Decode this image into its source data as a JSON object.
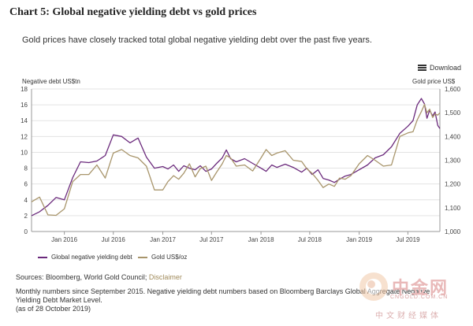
{
  "header": {
    "title": "Chart 5: Global negative yielding debt vs gold prices",
    "subtitle": "Gold prices have closely tracked total global negative yielding debt over the past five years."
  },
  "toolbar": {
    "download_label": "Download",
    "download_icon": "menu-icon"
  },
  "footer": {
    "sources_prefix": "Sources: Bloomberg, World Gold Council; ",
    "disclaimer_link": "Disclaimer",
    "note_line1": "Monthly numbers since September 2015. Negative yielding debt numbers based on Bloomberg Barclays Global Aggregate Negative",
    "note_line2": "Yielding Debt Market Level.",
    "note_line3": "(as of 28 October 2019)"
  },
  "watermark": {
    "text": "中金网",
    "url": "CNGOLD.COM.CN",
    "sub": "中文财经媒体"
  },
  "colors": {
    "debt": "#6b2a7c",
    "gold": "#a8956b",
    "grid": "#e3e3e3",
    "axis": "#999999"
  },
  "chart_data": {
    "type": "line",
    "title": "Chart 5: Global negative yielding debt vs gold prices",
    "y_left_label": "Negative debt US$tn",
    "y_right_label": "Gold price US$",
    "y_left_range": [
      0,
      18
    ],
    "y_left_ticks": [
      "0",
      "2",
      "4",
      "6",
      "8",
      "10",
      "12",
      "14",
      "16",
      "18"
    ],
    "y_right_range": [
      1000,
      1600
    ],
    "y_right_ticks": [
      "1,000",
      "1,100",
      "1,200",
      "1,300",
      "1,400",
      "1,500",
      "1,600"
    ],
    "x_range": [
      "2015-09-01",
      "2019-10-28"
    ],
    "x_ticks": [
      {
        "date": "2016-01-01",
        "label": "Jan 2016"
      },
      {
        "date": "2016-07-01",
        "label": "Jul 2016"
      },
      {
        "date": "2017-01-01",
        "label": "Jan 2017"
      },
      {
        "date": "2017-07-01",
        "label": "Jul 2017"
      },
      {
        "date": "2018-01-01",
        "label": "Jan 2018"
      },
      {
        "date": "2018-07-01",
        "label": "Jul 2018"
      },
      {
        "date": "2019-01-01",
        "label": "Jan 2019"
      },
      {
        "date": "2019-07-01",
        "label": "Jul 2019"
      }
    ],
    "grid": true,
    "legend_position": "bottom-left",
    "series": [
      {
        "name": "Global negative yielding debt",
        "axis": "left",
        "color": "#6b2a7c",
        "points": [
          [
            "2015-09-01",
            2.0
          ],
          [
            "2015-10-01",
            2.5
          ],
          [
            "2015-11-01",
            3.3
          ],
          [
            "2015-12-01",
            4.3
          ],
          [
            "2016-01-01",
            4.0
          ],
          [
            "2016-02-01",
            6.8
          ],
          [
            "2016-03-01",
            8.8
          ],
          [
            "2016-04-01",
            8.7
          ],
          [
            "2016-05-01",
            8.9
          ],
          [
            "2016-06-01",
            9.6
          ],
          [
            "2016-07-01",
            12.2
          ],
          [
            "2016-08-01",
            12.0
          ],
          [
            "2016-09-01",
            11.2
          ],
          [
            "2016-10-01",
            11.8
          ],
          [
            "2016-11-01",
            9.4
          ],
          [
            "2016-12-01",
            8.0
          ],
          [
            "2017-01-01",
            8.2
          ],
          [
            "2017-01-20",
            7.9
          ],
          [
            "2017-02-10",
            8.4
          ],
          [
            "2017-03-01",
            7.6
          ],
          [
            "2017-03-20",
            8.3
          ],
          [
            "2017-04-10",
            8.0
          ],
          [
            "2017-05-01",
            7.8
          ],
          [
            "2017-05-20",
            8.3
          ],
          [
            "2017-06-10",
            7.6
          ],
          [
            "2017-07-01",
            7.9
          ],
          [
            "2017-07-20",
            8.6
          ],
          [
            "2017-08-10",
            9.3
          ],
          [
            "2017-08-25",
            10.3
          ],
          [
            "2017-09-10",
            9.2
          ],
          [
            "2017-10-01",
            8.8
          ],
          [
            "2017-11-01",
            9.2
          ],
          [
            "2017-12-01",
            8.6
          ],
          [
            "2018-01-01",
            8.0
          ],
          [
            "2018-01-20",
            7.6
          ],
          [
            "2018-02-10",
            8.4
          ],
          [
            "2018-03-01",
            8.1
          ],
          [
            "2018-04-01",
            8.5
          ],
          [
            "2018-05-01",
            8.1
          ],
          [
            "2018-06-01",
            7.5
          ],
          [
            "2018-06-20",
            8.0
          ],
          [
            "2018-07-10",
            7.2
          ],
          [
            "2018-08-01",
            7.8
          ],
          [
            "2018-08-20",
            6.7
          ],
          [
            "2018-09-10",
            6.5
          ],
          [
            "2018-10-01",
            6.2
          ],
          [
            "2018-10-20",
            6.6
          ],
          [
            "2018-11-10",
            7.0
          ],
          [
            "2018-12-01",
            7.2
          ],
          [
            "2019-01-01",
            7.8
          ],
          [
            "2019-02-01",
            8.4
          ],
          [
            "2019-03-01",
            9.3
          ],
          [
            "2019-04-01",
            9.7
          ],
          [
            "2019-05-01",
            10.7
          ],
          [
            "2019-06-01",
            12.4
          ],
          [
            "2019-07-01",
            13.3
          ],
          [
            "2019-07-20",
            14.0
          ],
          [
            "2019-08-05",
            16.0
          ],
          [
            "2019-08-20",
            16.8
          ],
          [
            "2019-09-01",
            16.1
          ],
          [
            "2019-09-10",
            14.3
          ],
          [
            "2019-09-20",
            15.3
          ],
          [
            "2019-10-01",
            14.6
          ],
          [
            "2019-10-10",
            15.1
          ],
          [
            "2019-10-20",
            13.4
          ],
          [
            "2019-10-28",
            13.0
          ]
        ]
      },
      {
        "name": "Gold US$/oz",
        "axis": "right",
        "color": "#a8956b",
        "points": [
          [
            "2015-09-01",
            1125
          ],
          [
            "2015-10-01",
            1145
          ],
          [
            "2015-11-01",
            1070
          ],
          [
            "2015-12-01",
            1068
          ],
          [
            "2016-01-01",
            1095
          ],
          [
            "2016-02-01",
            1210
          ],
          [
            "2016-03-01",
            1240
          ],
          [
            "2016-04-01",
            1240
          ],
          [
            "2016-05-01",
            1280
          ],
          [
            "2016-06-01",
            1225
          ],
          [
            "2016-07-01",
            1330
          ],
          [
            "2016-08-01",
            1345
          ],
          [
            "2016-09-01",
            1320
          ],
          [
            "2016-10-01",
            1310
          ],
          [
            "2016-11-01",
            1275
          ],
          [
            "2016-12-01",
            1175
          ],
          [
            "2017-01-01",
            1175
          ],
          [
            "2017-01-20",
            1210
          ],
          [
            "2017-02-10",
            1235
          ],
          [
            "2017-03-01",
            1220
          ],
          [
            "2017-03-20",
            1245
          ],
          [
            "2017-04-10",
            1285
          ],
          [
            "2017-05-01",
            1230
          ],
          [
            "2017-05-20",
            1265
          ],
          [
            "2017-06-10",
            1275
          ],
          [
            "2017-07-01",
            1215
          ],
          [
            "2017-07-20",
            1250
          ],
          [
            "2017-08-10",
            1285
          ],
          [
            "2017-08-25",
            1320
          ],
          [
            "2017-09-10",
            1310
          ],
          [
            "2017-10-01",
            1275
          ],
          [
            "2017-11-01",
            1280
          ],
          [
            "2017-12-01",
            1255
          ],
          [
            "2018-01-01",
            1310
          ],
          [
            "2018-01-20",
            1345
          ],
          [
            "2018-02-10",
            1320
          ],
          [
            "2018-03-01",
            1330
          ],
          [
            "2018-04-01",
            1340
          ],
          [
            "2018-05-01",
            1300
          ],
          [
            "2018-06-01",
            1295
          ],
          [
            "2018-06-20",
            1265
          ],
          [
            "2018-07-10",
            1245
          ],
          [
            "2018-08-01",
            1215
          ],
          [
            "2018-08-20",
            1185
          ],
          [
            "2018-09-10",
            1200
          ],
          [
            "2018-10-01",
            1190
          ],
          [
            "2018-10-20",
            1225
          ],
          [
            "2018-11-10",
            1220
          ],
          [
            "2018-12-01",
            1235
          ],
          [
            "2019-01-01",
            1285
          ],
          [
            "2019-02-01",
            1320
          ],
          [
            "2019-03-01",
            1300
          ],
          [
            "2019-04-01",
            1275
          ],
          [
            "2019-05-01",
            1280
          ],
          [
            "2019-06-01",
            1400
          ],
          [
            "2019-07-01",
            1415
          ],
          [
            "2019-07-20",
            1420
          ],
          [
            "2019-08-05",
            1470
          ],
          [
            "2019-08-20",
            1505
          ],
          [
            "2019-09-01",
            1535
          ],
          [
            "2019-09-10",
            1500
          ],
          [
            "2019-09-20",
            1515
          ],
          [
            "2019-10-01",
            1480
          ],
          [
            "2019-10-10",
            1495
          ],
          [
            "2019-10-20",
            1490
          ],
          [
            "2019-10-28",
            1500
          ]
        ]
      }
    ]
  }
}
